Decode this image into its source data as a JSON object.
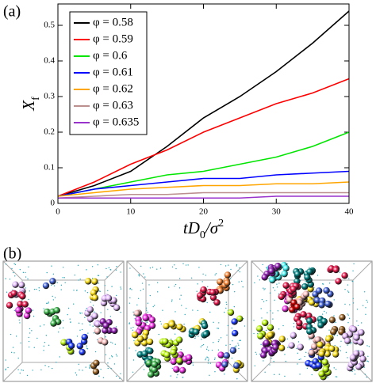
{
  "panels": {
    "a": "(a)",
    "b": "(b)"
  },
  "chart_data": {
    "type": "line",
    "x_label": [
      {
        "text": "tD"
      },
      {
        "text": "0",
        "sub": true
      },
      {
        "text": "/σ"
      },
      {
        "text": "2",
        "sup": true
      }
    ],
    "y_label": [
      {
        "text": "X"
      },
      {
        "text": "f",
        "sub": true
      }
    ],
    "x": [
      0,
      5,
      10,
      15,
      20,
      25,
      30,
      35,
      40
    ],
    "xlim": [
      0,
      40
    ],
    "xticks": [
      0,
      10,
      20,
      30,
      40
    ],
    "ylim": [
      0,
      0.56
    ],
    "yticks": [
      0,
      0.1,
      0.2,
      0.3,
      0.4,
      0.5
    ],
    "legend": "upper left",
    "series": [
      {
        "name": "φ = 0.58",
        "color": "#000000",
        "values": [
          0.02,
          0.05,
          0.09,
          0.16,
          0.24,
          0.3,
          0.37,
          0.45,
          0.54
        ]
      },
      {
        "name": "φ = 0.59",
        "color": "#ff0000",
        "values": [
          0.02,
          0.06,
          0.11,
          0.15,
          0.2,
          0.24,
          0.28,
          0.31,
          0.35
        ]
      },
      {
        "name": "φ = 0.6",
        "color": "#00e600",
        "values": [
          0.02,
          0.04,
          0.06,
          0.08,
          0.09,
          0.11,
          0.13,
          0.16,
          0.2
        ]
      },
      {
        "name": "φ = 0.61",
        "color": "#0000ff",
        "values": [
          0.02,
          0.04,
          0.05,
          0.06,
          0.07,
          0.07,
          0.08,
          0.085,
          0.09
        ]
      },
      {
        "name": "φ = 0.62",
        "color": "#ffa500",
        "values": [
          0.02,
          0.03,
          0.04,
          0.045,
          0.05,
          0.05,
          0.055,
          0.055,
          0.06
        ]
      },
      {
        "name": "φ = 0.63",
        "color": "#bc8f8f",
        "values": [
          0.015,
          0.02,
          0.025,
          0.025,
          0.03,
          0.03,
          0.03,
          0.03,
          0.03
        ]
      },
      {
        "name": "φ = 0.635",
        "color": "#9932cc",
        "values": [
          0.015,
          0.015,
          0.015,
          0.015,
          0.015,
          0.015,
          0.02,
          0.02,
          0.02
        ]
      }
    ]
  }
}
